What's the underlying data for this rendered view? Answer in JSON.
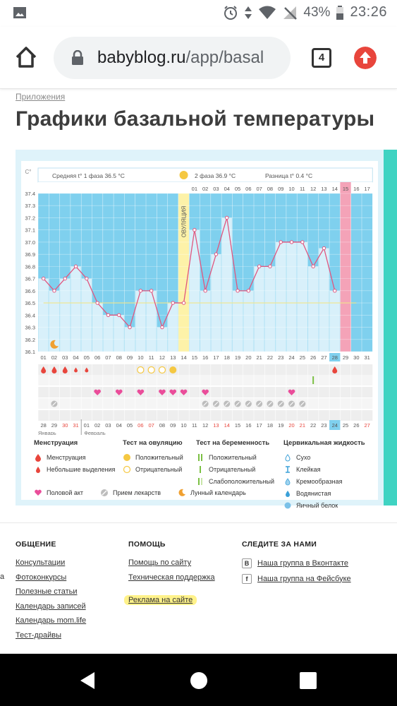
{
  "status_bar": {
    "battery_pct": "43%",
    "time": "23:26"
  },
  "browser": {
    "url_host": "babyblog.ru",
    "url_path": "/app/basal",
    "tab_count": "4"
  },
  "page": {
    "breadcrumb": "Приложения",
    "title": "Графики базальной температуры"
  },
  "chart_data": {
    "type": "line",
    "ylabel": "C°",
    "ylim": [
      36.1,
      37.4
    ],
    "y_ticks": [
      "37.4",
      "37.3",
      "37.2",
      "37.1",
      "37.0",
      "36.9",
      "36.8",
      "36.7",
      "36.6",
      "36.5",
      "36.4",
      "36.3",
      "36.2",
      "36.1"
    ],
    "phase1_label": "Средняя t° 1 фаза 36.5 °C",
    "phase2_label": "2 фаза 36.9 °C",
    "diff_label": "Разница t° 0.4 °C",
    "ovulation_label": "ОВУЛЯЦИЯ",
    "cycle_days": [
      "01",
      "02",
      "03",
      "04",
      "05",
      "06",
      "07",
      "08",
      "09",
      "10",
      "11",
      "12",
      "13",
      "14",
      "15",
      "16",
      "17",
      "18",
      "19",
      "20",
      "21",
      "22",
      "23",
      "24",
      "25",
      "26",
      "27",
      "28",
      "29",
      "30",
      "31"
    ],
    "top_days_phase2": [
      "01",
      "02",
      "03",
      "04",
      "05",
      "06",
      "07",
      "08",
      "09",
      "10",
      "11",
      "12",
      "13",
      "14",
      "15",
      "16",
      "17"
    ],
    "temperatures": [
      36.7,
      36.6,
      36.7,
      36.8,
      36.7,
      36.5,
      36.4,
      36.4,
      36.3,
      36.6,
      36.6,
      36.3,
      36.5,
      36.5,
      37.1,
      36.6,
      36.9,
      37.2,
      36.6,
      36.6,
      36.8,
      36.8,
      37.0,
      37.0,
      37.0,
      36.8,
      36.95,
      36.6
    ],
    "coverline": 36.5,
    "calendar_dates": [
      "28",
      "29",
      "30",
      "31",
      "01",
      "02",
      "03",
      "04",
      "05",
      "06",
      "07",
      "08",
      "09",
      "10",
      "11",
      "12",
      "13",
      "14",
      "15",
      "16",
      "17",
      "18",
      "19",
      "20",
      "21",
      "22",
      "23",
      "24",
      "25",
      "26",
      "27"
    ],
    "month_jan": "Январь",
    "month_feb": "Февраль"
  },
  "legend": {
    "menstruation": {
      "title": "Менструация",
      "items": [
        "Менструация",
        "Небольшие выделения"
      ]
    },
    "ovulation_test": {
      "title": "Тест на овуляцию",
      "items": [
        "Положительный",
        "Отрицательный"
      ]
    },
    "pregnancy_test": {
      "title": "Тест на беременность",
      "items": [
        "Положительный",
        "Отрицательный",
        "Слабоположительный"
      ]
    },
    "cervical": {
      "title": "Цервикальная жидкость",
      "items": [
        "Сухо",
        "Клейкая",
        "Кремообразная",
        "Водянистая",
        "Яичный белок"
      ]
    },
    "bottom": [
      "Половой акт",
      "Прием лекарств",
      "Лунный календарь"
    ]
  },
  "footer": {
    "col1": {
      "title": "ОБЩЕНИЕ",
      "links": [
        "Консультации",
        "Фотоконкурсы",
        "Полезные статьи",
        "Календарь записей",
        "Календарь mom.life",
        "Тест-драйвы"
      ]
    },
    "col2": {
      "title": "ПОМОЩЬ",
      "links": [
        "Помощь по сайту",
        "Техническая поддержка",
        "Реклама на сайте"
      ]
    },
    "col3": {
      "title": "СЛЕДИТЕ ЗА НАМИ",
      "links": [
        "Наша группа в Вконтакте",
        "Наша группа на Фейсбуке"
      ],
      "icons": [
        "В",
        "f"
      ]
    }
  }
}
